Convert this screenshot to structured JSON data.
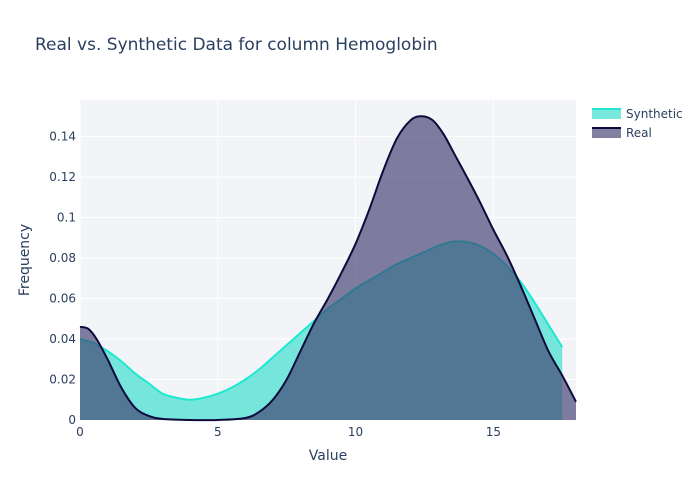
{
  "chart_data": {
    "type": "area",
    "title": "Real vs. Synthetic Data for column Hemoglobin",
    "xlabel": "Value",
    "ylabel": "Frequency",
    "xlim": [
      0,
      18
    ],
    "ylim": [
      0,
      0.158
    ],
    "x_ticks": [
      0,
      5,
      10,
      15
    ],
    "y_ticks": [
      0,
      0.02,
      0.04,
      0.06,
      0.08,
      0.1,
      0.12,
      0.14
    ],
    "x_tick_labels": [
      "0",
      "5",
      "10",
      "15"
    ],
    "y_tick_labels": [
      "0",
      "0.02",
      "0.04",
      "0.06",
      "0.08",
      "0.1",
      "0.12",
      "0.14"
    ],
    "grid": true,
    "legend_position": "top-right",
    "series": [
      {
        "name": "Synthetic",
        "line_color": "#1de9d0",
        "fill_color": "#40e0d0",
        "fill_opacity": 0.7,
        "points": [
          [
            0,
            0.04
          ],
          [
            0.5,
            0.038
          ],
          [
            1,
            0.034
          ],
          [
            1.5,
            0.029
          ],
          [
            2,
            0.023
          ],
          [
            2.5,
            0.018
          ],
          [
            3,
            0.013
          ],
          [
            3.5,
            0.011
          ],
          [
            4,
            0.01
          ],
          [
            4.5,
            0.011
          ],
          [
            5,
            0.013
          ],
          [
            5.5,
            0.016
          ],
          [
            6,
            0.02
          ],
          [
            6.5,
            0.025
          ],
          [
            7,
            0.031
          ],
          [
            7.5,
            0.037
          ],
          [
            8,
            0.043
          ],
          [
            8.5,
            0.049
          ],
          [
            9,
            0.055
          ],
          [
            9.5,
            0.06
          ],
          [
            10,
            0.065
          ],
          [
            10.5,
            0.069
          ],
          [
            11,
            0.073
          ],
          [
            11.5,
            0.077
          ],
          [
            12,
            0.08
          ],
          [
            12.5,
            0.083
          ],
          [
            13,
            0.086
          ],
          [
            13.5,
            0.088
          ],
          [
            14,
            0.088
          ],
          [
            14.5,
            0.086
          ],
          [
            15,
            0.082
          ],
          [
            15.5,
            0.076
          ],
          [
            16,
            0.068
          ],
          [
            16.5,
            0.058
          ],
          [
            17,
            0.047
          ],
          [
            17.5,
            0.036
          ]
        ]
      },
      {
        "name": "Real",
        "line_color": "#0d0a3c",
        "fill_color": "#3e3c6e",
        "fill_opacity": 0.65,
        "points": [
          [
            0,
            0.046
          ],
          [
            0.3,
            0.045
          ],
          [
            0.6,
            0.04
          ],
          [
            1,
            0.03
          ],
          [
            1.5,
            0.016
          ],
          [
            2,
            0.006
          ],
          [
            2.5,
            0.002
          ],
          [
            3,
            0.0005
          ],
          [
            4,
            0.0
          ],
          [
            5,
            0.0
          ],
          [
            6,
            0.001
          ],
          [
            6.5,
            0.004
          ],
          [
            7,
            0.01
          ],
          [
            7.5,
            0.02
          ],
          [
            8,
            0.034
          ],
          [
            8.5,
            0.048
          ],
          [
            9,
            0.06
          ],
          [
            9.5,
            0.073
          ],
          [
            10,
            0.087
          ],
          [
            10.5,
            0.104
          ],
          [
            11,
            0.123
          ],
          [
            11.5,
            0.139
          ],
          [
            12,
            0.148
          ],
          [
            12.4,
            0.15
          ],
          [
            12.8,
            0.148
          ],
          [
            13.2,
            0.141
          ],
          [
            13.6,
            0.131
          ],
          [
            14,
            0.121
          ],
          [
            14.5,
            0.108
          ],
          [
            15,
            0.094
          ],
          [
            15.5,
            0.081
          ],
          [
            16,
            0.066
          ],
          [
            16.5,
            0.05
          ],
          [
            17,
            0.034
          ],
          [
            17.5,
            0.022
          ],
          [
            18,
            0.009
          ]
        ]
      }
    ]
  }
}
